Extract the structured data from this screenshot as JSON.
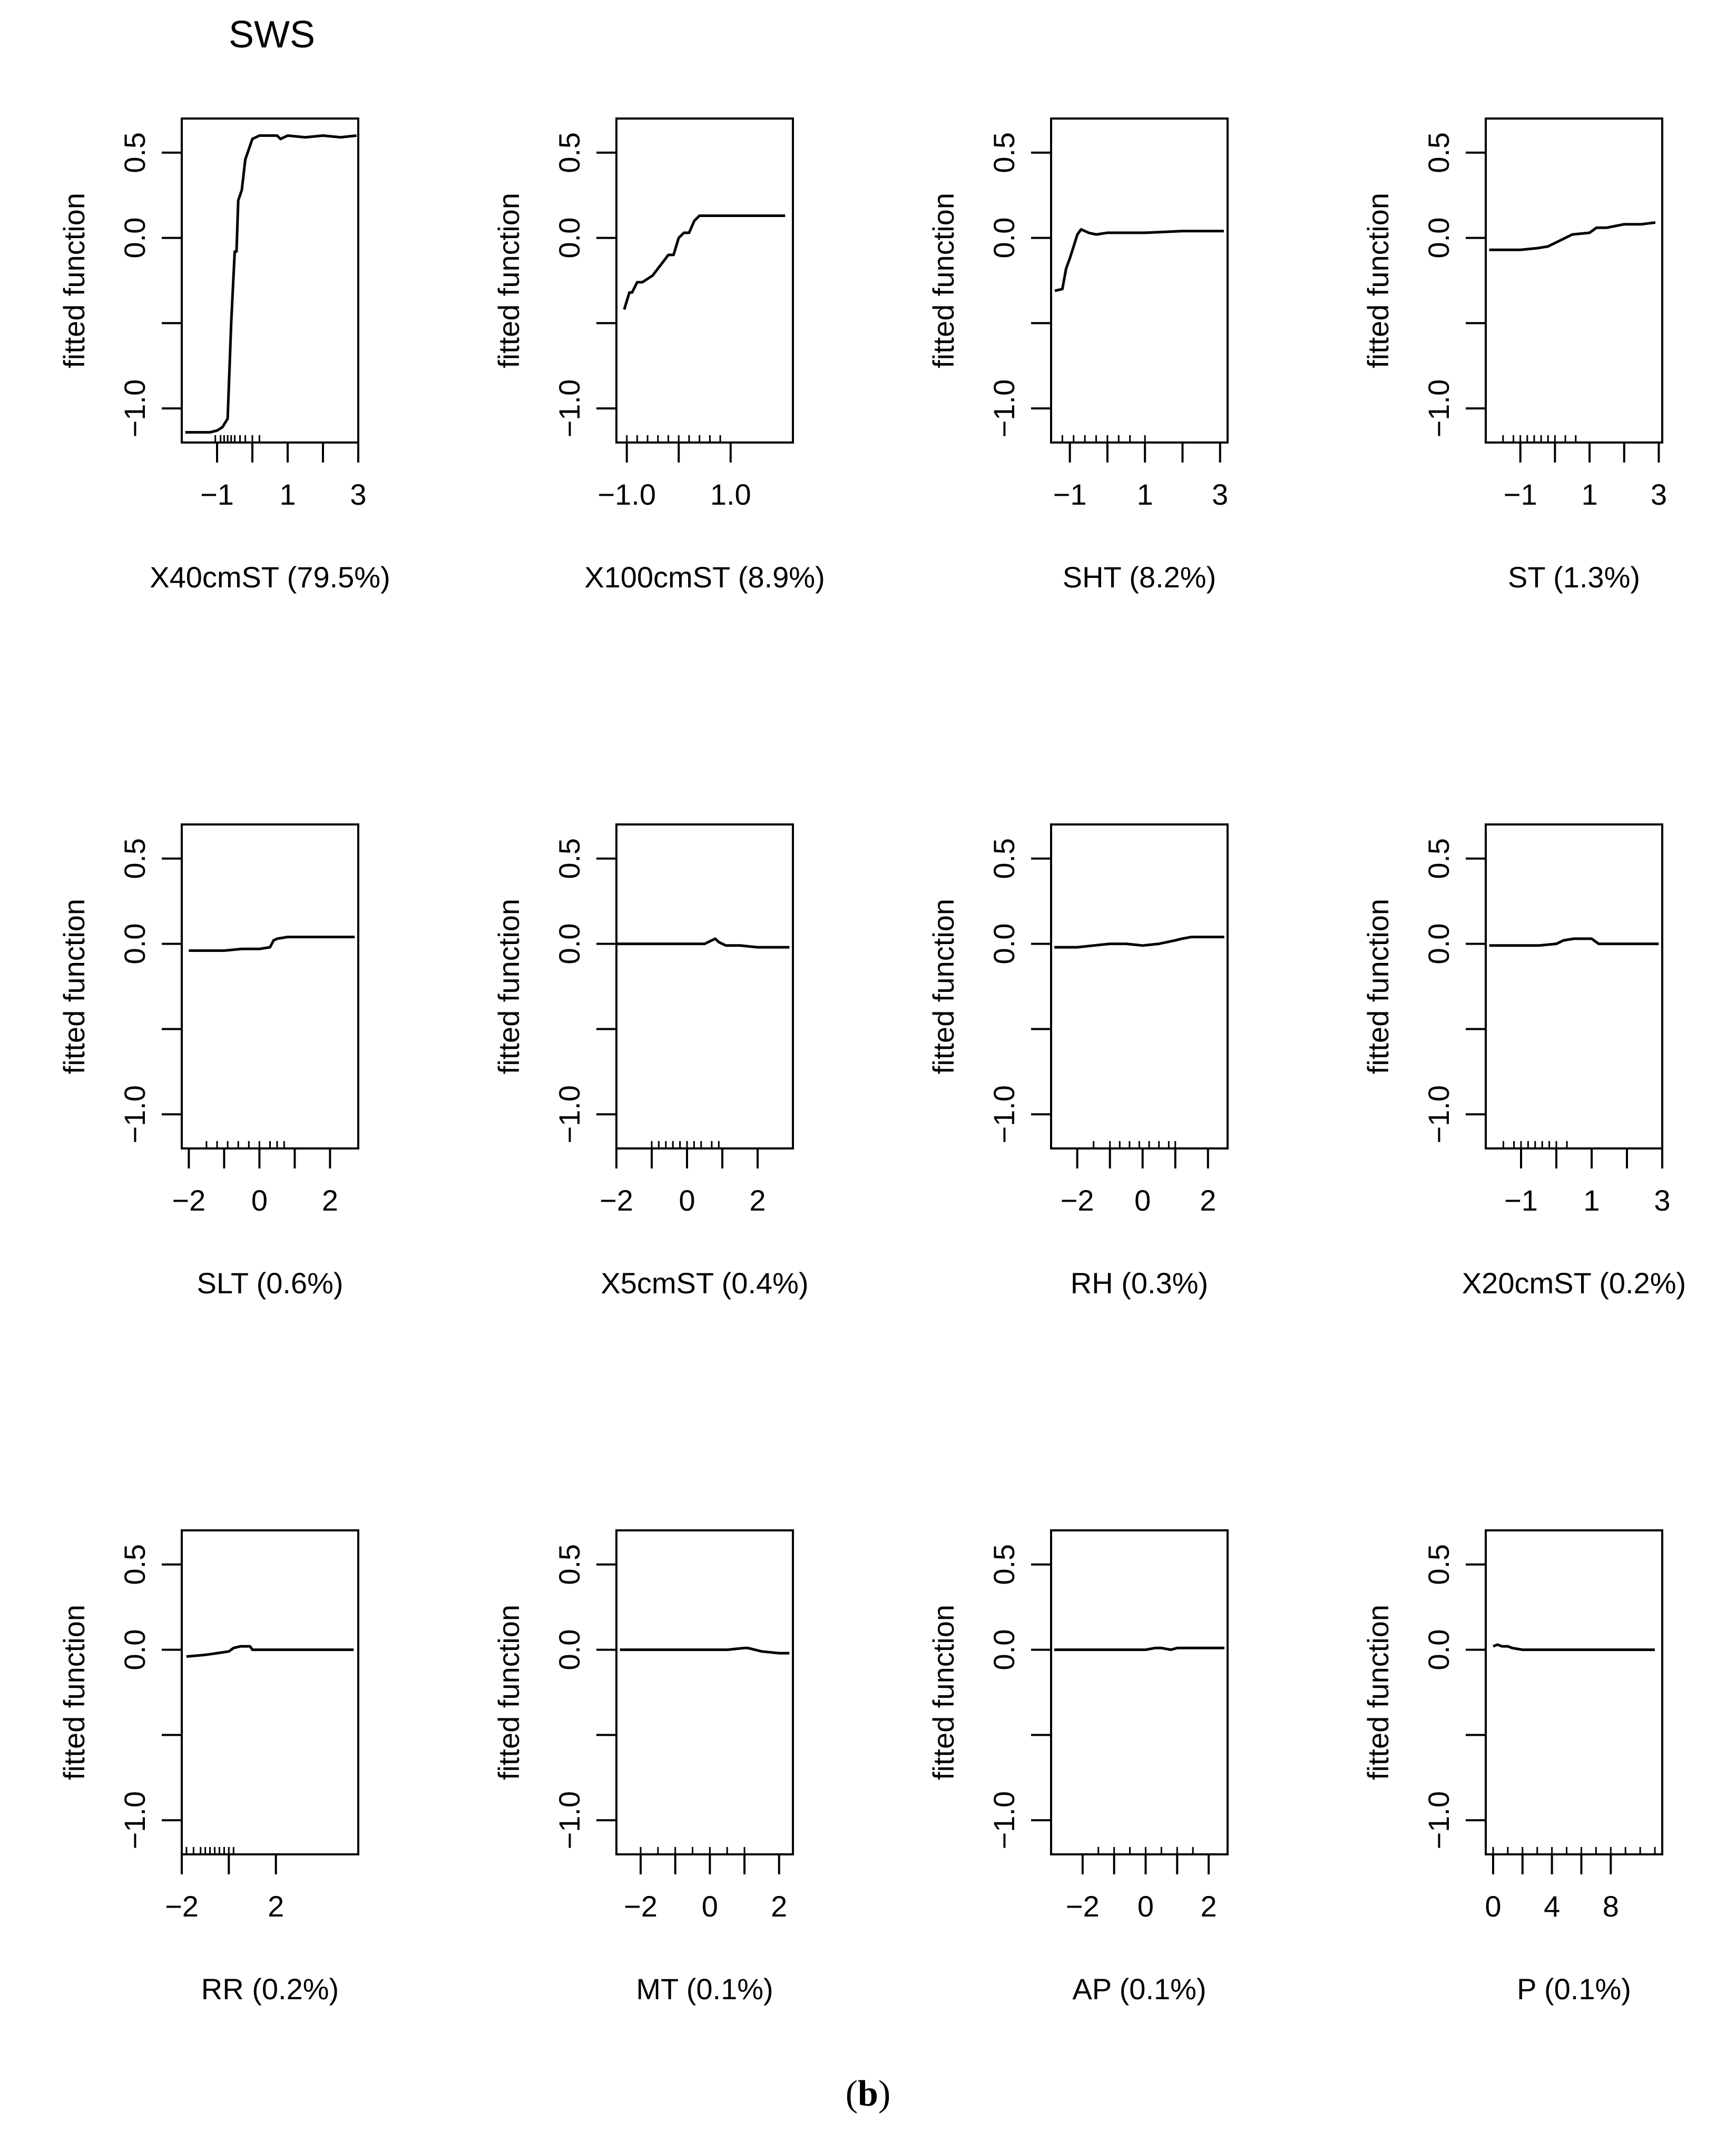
{
  "figure": {
    "title": "SWS",
    "caption_open": "(",
    "caption_letter": "b",
    "caption_close": ")"
  },
  "chart_data": [
    {
      "type": "line",
      "xlabel": "X40cmST  (79.5%)",
      "ylabel": "fitted function",
      "xlim": [
        -2.0,
        3.0
      ],
      "ylim": [
        -1.2,
        0.7
      ],
      "xticks": [
        {
          "v": -1,
          "label": "−1"
        },
        {
          "v": 1,
          "label": "1"
        },
        {
          "v": 3,
          "label": "3"
        }
      ],
      "yticks": [
        {
          "v": 0.5,
          "label": "0.5"
        },
        {
          "v": 0.0,
          "label": "0.0"
        },
        {
          "v": -0.5,
          "label": ""
        },
        {
          "v": -1.0,
          "label": "−1.0"
        }
      ],
      "x": [
        -1.9,
        -1.2,
        -1.0,
        -0.85,
        -0.7,
        -0.6,
        -0.5,
        -0.45,
        -0.4,
        -0.3,
        -0.2,
        0.0,
        0.2,
        0.5,
        0.7,
        0.8,
        1.0,
        1.5,
        2.0,
        2.5,
        2.95
      ],
      "y": [
        -1.14,
        -1.14,
        -1.13,
        -1.11,
        -1.06,
        -0.5,
        -0.08,
        -0.08,
        0.22,
        0.28,
        0.46,
        0.58,
        0.6,
        0.6,
        0.6,
        0.58,
        0.6,
        0.59,
        0.6,
        0.59,
        0.6
      ],
      "rug": [
        -1.05,
        -0.9,
        -0.8,
        -0.7,
        -0.6,
        -0.5,
        -0.35,
        -0.2,
        0.0,
        0.2
      ]
    },
    {
      "type": "line",
      "xlabel": "X100cmST  (8.9%)",
      "ylabel": "fitted function",
      "xlim": [
        -1.2,
        2.2
      ],
      "ylim": [
        -1.2,
        0.7
      ],
      "xticks": [
        {
          "v": -1.0,
          "label": "−1.0"
        },
        {
          "v": 1.0,
          "label": "1.0"
        }
      ],
      "yticks": [
        {
          "v": 0.5,
          "label": "0.5"
        },
        {
          "v": 0.0,
          "label": "0.0"
        },
        {
          "v": -0.5,
          "label": ""
        },
        {
          "v": -1.0,
          "label": "−1.0"
        }
      ],
      "x": [
        -1.05,
        -0.95,
        -0.9,
        -0.8,
        -0.7,
        -0.5,
        -0.4,
        -0.3,
        -0.2,
        -0.1,
        0.0,
        0.1,
        0.2,
        0.3,
        0.4,
        0.5,
        0.6,
        1.0,
        1.5,
        2.05
      ],
      "y": [
        -0.42,
        -0.32,
        -0.32,
        -0.26,
        -0.26,
        -0.22,
        -0.18,
        -0.14,
        -0.1,
        -0.1,
        0.0,
        0.03,
        0.03,
        0.1,
        0.13,
        0.13,
        0.13,
        0.13,
        0.13,
        0.13
      ],
      "rug": [
        -1.0,
        -0.8,
        -0.6,
        -0.4,
        -0.2,
        0.0,
        0.2,
        0.4,
        0.6,
        0.8
      ]
    },
    {
      "type": "line",
      "xlabel": "SHT  (8.2%)",
      "ylabel": "fitted function",
      "xlim": [
        -1.5,
        3.2
      ],
      "ylim": [
        -1.2,
        0.7
      ],
      "xticks": [
        {
          "v": -1,
          "label": "−1"
        },
        {
          "v": 1,
          "label": "1"
        },
        {
          "v": 3,
          "label": "3"
        }
      ],
      "yticks": [
        {
          "v": 0.5,
          "label": "0.5"
        },
        {
          "v": 0.0,
          "label": "0.0"
        },
        {
          "v": -0.5,
          "label": ""
        },
        {
          "v": -1.0,
          "label": "−1.0"
        }
      ],
      "x": [
        -1.4,
        -1.2,
        -1.1,
        -1.0,
        -0.9,
        -0.8,
        -0.7,
        -0.6,
        -0.5,
        -0.3,
        0.0,
        0.5,
        1.0,
        2.0,
        3.1
      ],
      "y": [
        -0.31,
        -0.3,
        -0.18,
        -0.12,
        -0.05,
        0.02,
        0.05,
        0.04,
        0.03,
        0.02,
        0.03,
        0.03,
        0.03,
        0.04,
        0.04
      ],
      "rug": [
        -1.2,
        -0.9,
        -0.6,
        -0.3,
        0.0,
        0.3,
        0.6,
        1.0
      ]
    },
    {
      "type": "line",
      "xlabel": "ST  (1.3%)",
      "ylabel": "fitted function",
      "xlim": [
        -2.0,
        3.1
      ],
      "ylim": [
        -1.2,
        0.7
      ],
      "xticks": [
        {
          "v": -1,
          "label": "−1"
        },
        {
          "v": 1,
          "label": "1"
        },
        {
          "v": 3,
          "label": "3"
        }
      ],
      "yticks": [
        {
          "v": 0.5,
          "label": "0.5"
        },
        {
          "v": 0.0,
          "label": "0.0"
        },
        {
          "v": -0.5,
          "label": ""
        },
        {
          "v": -1.0,
          "label": "−1.0"
        }
      ],
      "x": [
        -1.9,
        -1.5,
        -1.0,
        -0.5,
        -0.2,
        0.0,
        0.3,
        0.5,
        1.0,
        1.2,
        1.5,
        2.0,
        2.5,
        2.9
      ],
      "y": [
        -0.07,
        -0.07,
        -0.07,
        -0.06,
        -0.05,
        -0.03,
        0.0,
        0.02,
        0.03,
        0.06,
        0.06,
        0.08,
        0.08,
        0.09
      ],
      "rug": [
        -1.5,
        -1.2,
        -1.0,
        -0.8,
        -0.6,
        -0.4,
        -0.2,
        0.0,
        0.3,
        0.6
      ]
    },
    {
      "type": "line",
      "xlabel": "SLT  (0.6%)",
      "ylabel": "fitted function",
      "xlim": [
        -2.2,
        2.8
      ],
      "ylim": [
        -1.2,
        0.7
      ],
      "xticks": [
        {
          "v": -2,
          "label": "−2"
        },
        {
          "v": 0,
          "label": "0"
        },
        {
          "v": 2,
          "label": "2"
        }
      ],
      "yticks": [
        {
          "v": 0.5,
          "label": "0.5"
        },
        {
          "v": 0.0,
          "label": "0.0"
        },
        {
          "v": -0.5,
          "label": ""
        },
        {
          "v": -1.0,
          "label": "−1.0"
        }
      ],
      "x": [
        -2.0,
        -1.5,
        -1.0,
        -0.5,
        0.0,
        0.3,
        0.4,
        0.5,
        0.8,
        1.0,
        1.5,
        2.0,
        2.7
      ],
      "y": [
        -0.04,
        -0.04,
        -0.04,
        -0.03,
        -0.03,
        -0.02,
        0.02,
        0.03,
        0.04,
        0.04,
        0.04,
        0.04,
        0.04
      ],
      "rug": [
        -1.5,
        -1.2,
        -0.9,
        -0.6,
        -0.3,
        0.0,
        0.3,
        0.5,
        0.7
      ]
    },
    {
      "type": "line",
      "xlabel": "X5cmST  (0.4%)",
      "ylabel": "fitted function",
      "xlim": [
        -2.0,
        3.0
      ],
      "ylim": [
        -1.2,
        0.7
      ],
      "xticks": [
        {
          "v": -2,
          "label": "−2"
        },
        {
          "v": 0,
          "label": "0"
        },
        {
          "v": 2,
          "label": "2"
        }
      ],
      "yticks": [
        {
          "v": 0.5,
          "label": "0.5"
        },
        {
          "v": 0.0,
          "label": "0.0"
        },
        {
          "v": -0.5,
          "label": ""
        },
        {
          "v": -1.0,
          "label": "−1.0"
        }
      ],
      "x": [
        -2.0,
        -1.0,
        0.0,
        0.5,
        0.7,
        0.8,
        0.9,
        1.0,
        1.1,
        1.5,
        2.0,
        2.9
      ],
      "y": [
        0.0,
        0.0,
        0.0,
        0.0,
        0.02,
        0.03,
        0.01,
        0.0,
        -0.01,
        -0.01,
        -0.02,
        -0.02
      ],
      "rug": [
        -1.0,
        -0.8,
        -0.6,
        -0.4,
        -0.2,
        0.0,
        0.2,
        0.4,
        0.7,
        0.9
      ]
    },
    {
      "type": "line",
      "xlabel": "RH  (0.3%)",
      "ylabel": "fitted function",
      "xlim": [
        -2.8,
        2.6
      ],
      "ylim": [
        -1.2,
        0.7
      ],
      "xticks": [
        {
          "v": -2,
          "label": "−2"
        },
        {
          "v": 0,
          "label": "0"
        },
        {
          "v": 2,
          "label": "2"
        }
      ],
      "yticks": [
        {
          "v": 0.5,
          "label": "0.5"
        },
        {
          "v": 0.0,
          "label": "0.0"
        },
        {
          "v": -0.5,
          "label": ""
        },
        {
          "v": -1.0,
          "label": "−1.0"
        }
      ],
      "x": [
        -2.7,
        -2.0,
        -1.5,
        -1.0,
        -0.5,
        0.0,
        0.5,
        1.0,
        1.2,
        1.5,
        2.0,
        2.5
      ],
      "y": [
        -0.02,
        -0.02,
        -0.01,
        0.0,
        0.0,
        -0.01,
        0.0,
        0.02,
        0.03,
        0.04,
        0.04,
        0.04
      ],
      "rug": [
        -1.5,
        -1.0,
        -0.7,
        -0.4,
        -0.1,
        0.2,
        0.5,
        0.8,
        1.0
      ]
    },
    {
      "type": "line",
      "xlabel": "X20cmST  (0.2%)",
      "ylabel": "fitted function",
      "xlim": [
        -2.0,
        3.0
      ],
      "ylim": [
        -1.2,
        0.7
      ],
      "xticks": [
        {
          "v": -1,
          "label": "−1"
        },
        {
          "v": 1,
          "label": "1"
        },
        {
          "v": 3,
          "label": "3"
        }
      ],
      "yticks": [
        {
          "v": 0.5,
          "label": "0.5"
        },
        {
          "v": 0.0,
          "label": "0.0"
        },
        {
          "v": -0.5,
          "label": ""
        },
        {
          "v": -1.0,
          "label": "−1.0"
        }
      ],
      "x": [
        -1.9,
        -1.0,
        -0.5,
        0.0,
        0.2,
        0.5,
        0.8,
        1.0,
        1.2,
        1.5,
        2.0,
        2.9
      ],
      "y": [
        -0.01,
        -0.01,
        -0.01,
        0.0,
        0.02,
        0.03,
        0.03,
        0.03,
        0.0,
        0.0,
        0.0,
        0.0
      ],
      "rug": [
        -1.5,
        -1.2,
        -1.0,
        -0.8,
        -0.6,
        -0.4,
        -0.2,
        0.0,
        0.3
      ]
    },
    {
      "type": "line",
      "xlabel": "RR  (0.2%)",
      "ylabel": "fitted function",
      "xlim": [
        -2.0,
        5.5
      ],
      "ylim": [
        -1.2,
        0.7
      ],
      "xticks": [
        {
          "v": -2,
          "label": "−2"
        },
        {
          "v": 2,
          "label": "2"
        }
      ],
      "yticks": [
        {
          "v": 0.5,
          "label": "0.5"
        },
        {
          "v": 0.0,
          "label": "0.0"
        },
        {
          "v": -0.5,
          "label": ""
        },
        {
          "v": -1.0,
          "label": "−1.0"
        }
      ],
      "x": [
        -1.8,
        -1.0,
        -0.5,
        0.0,
        0.2,
        0.5,
        0.9,
        1.0,
        2.0,
        3.0,
        4.0,
        5.3
      ],
      "y": [
        -0.04,
        -0.03,
        -0.02,
        -0.01,
        0.01,
        0.02,
        0.02,
        0.0,
        0.0,
        0.0,
        0.0,
        0.0
      ],
      "rug": [
        -1.8,
        -1.5,
        -1.2,
        -1.0,
        -0.8,
        -0.6,
        -0.4,
        -0.2,
        0.0,
        0.2
      ]
    },
    {
      "type": "line",
      "xlabel": "MT  (0.1%)",
      "ylabel": "fitted function",
      "xlim": [
        -2.7,
        2.4
      ],
      "ylim": [
        -1.2,
        0.7
      ],
      "xticks": [
        {
          "v": -2,
          "label": "−2"
        },
        {
          "v": 0,
          "label": "0"
        },
        {
          "v": 2,
          "label": "2"
        }
      ],
      "yticks": [
        {
          "v": 0.5,
          "label": "0.5"
        },
        {
          "v": 0.0,
          "label": "0.0"
        },
        {
          "v": -0.5,
          "label": ""
        },
        {
          "v": -1.0,
          "label": "−1.0"
        }
      ],
      "x": [
        -2.6,
        -2.0,
        -1.0,
        0.0,
        0.5,
        1.0,
        1.1,
        1.3,
        1.5,
        2.0,
        2.3
      ],
      "y": [
        0.0,
        0.0,
        0.0,
        0.0,
        0.0,
        0.01,
        0.01,
        0.0,
        -0.01,
        -0.02,
        -0.02
      ],
      "rug": [
        -2.0,
        -1.5,
        -1.0,
        -0.5,
        0.0,
        0.5,
        1.0
      ]
    },
    {
      "type": "line",
      "xlabel": "AP  (0.1%)",
      "ylabel": "fitted function",
      "xlim": [
        -3.0,
        2.6
      ],
      "ylim": [
        -1.2,
        0.7
      ],
      "xticks": [
        {
          "v": -2,
          "label": "−2"
        },
        {
          "v": 0,
          "label": "0"
        },
        {
          "v": 2,
          "label": "2"
        }
      ],
      "yticks": [
        {
          "v": 0.5,
          "label": "0.5"
        },
        {
          "v": 0.0,
          "label": "0.0"
        },
        {
          "v": -0.5,
          "label": ""
        },
        {
          "v": -1.0,
          "label": "−1.0"
        }
      ],
      "x": [
        -2.9,
        -2.0,
        -1.0,
        0.0,
        0.3,
        0.5,
        0.8,
        1.0,
        1.5,
        2.0,
        2.5
      ],
      "y": [
        0.0,
        0.0,
        0.0,
        0.0,
        0.01,
        0.01,
        0.0,
        0.01,
        0.01,
        0.01,
        0.01
      ],
      "rug": [
        -1.5,
        -1.0,
        -0.5,
        0.0,
        0.5,
        1.0,
        1.5
      ]
    },
    {
      "type": "line",
      "xlabel": "P  (0.1%)",
      "ylabel": "fitted function",
      "xlim": [
        -0.5,
        11.5
      ],
      "ylim": [
        -1.2,
        0.7
      ],
      "xticks": [
        {
          "v": 0,
          "label": "0"
        },
        {
          "v": 4,
          "label": "4"
        },
        {
          "v": 8,
          "label": "8"
        }
      ],
      "yticks": [
        {
          "v": 0.5,
          "label": "0.5"
        },
        {
          "v": 0.0,
          "label": "0.0"
        },
        {
          "v": -0.5,
          "label": ""
        },
        {
          "v": -1.0,
          "label": "−1.0"
        }
      ],
      "x": [
        0.0,
        0.3,
        0.6,
        1.0,
        1.3,
        2.0,
        3.0,
        5.0,
        8.0,
        11.0
      ],
      "y": [
        0.02,
        0.03,
        0.02,
        0.02,
        0.01,
        0.0,
        0.0,
        0.0,
        0.0,
        0.0
      ],
      "rug": [
        0.0,
        1.0,
        2.0,
        3.0,
        4.0,
        5.0,
        6.0,
        7.0,
        8.0,
        9.0,
        10.0,
        11.0
      ]
    }
  ]
}
